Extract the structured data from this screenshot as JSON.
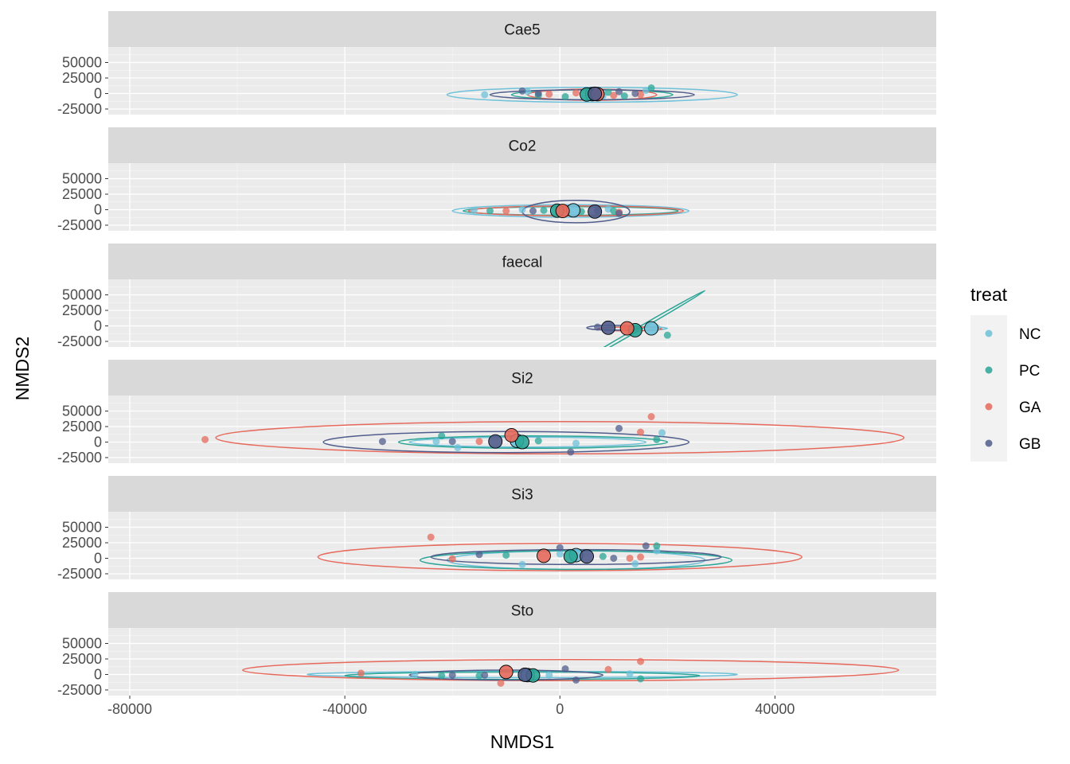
{
  "chart_data": {
    "type": "scatter",
    "xlabel": "NMDS1",
    "ylabel": "NMDS2",
    "xlim": [
      -84000,
      70000
    ],
    "ylim": [
      -34000,
      75000
    ],
    "x_ticks": [
      -80000,
      -40000,
      0,
      40000
    ],
    "y_ticks": [
      -25000,
      0,
      25000,
      50000
    ],
    "grid": true,
    "legend": {
      "title": "treat",
      "position": "right",
      "entries": [
        {
          "name": "NC",
          "color": "#6EC1D9"
        },
        {
          "name": "PC",
          "color": "#2AA596"
        },
        {
          "name": "GA",
          "color": "#E6695B"
        },
        {
          "name": "GB",
          "color": "#505D8C"
        }
      ]
    },
    "panels": [
      {
        "label": "Cae5",
        "centroids": {
          "NC": [
            6000,
            -1000
          ],
          "PC": [
            5000,
            -1500
          ],
          "GA": [
            7000,
            -1000
          ],
          "GB": [
            6500,
            -500
          ]
        },
        "ellipses": {
          "NC": {
            "center": [
              6000,
              -2000
            ],
            "rx": 27000,
            "ry": 12000,
            "angle": 0
          },
          "PC": {
            "center": [
              6000,
              -2000
            ],
            "rx": 15000,
            "ry": 8000,
            "angle": 0
          },
          "GA": {
            "center": [
              6000,
              -2000
            ],
            "rx": 12000,
            "ry": 9000,
            "angle": 0
          },
          "GB": {
            "center": [
              6000,
              -2000
            ],
            "rx": 19000,
            "ry": 8000,
            "angle": 0
          }
        },
        "points": [
          {
            "g": "NC",
            "x": -14000,
            "y": -2000
          },
          {
            "g": "NC",
            "x": -6000,
            "y": 3000
          },
          {
            "g": "NC",
            "x": 8000,
            "y": -4000
          },
          {
            "g": "NC",
            "x": 16000,
            "y": 5000
          },
          {
            "g": "PC",
            "x": -4000,
            "y": -3000
          },
          {
            "g": "PC",
            "x": 1000,
            "y": -5000
          },
          {
            "g": "PC",
            "x": 9000,
            "y": 2000
          },
          {
            "g": "PC",
            "x": 17000,
            "y": 9000
          },
          {
            "g": "PC",
            "x": 12000,
            "y": -4000
          },
          {
            "g": "GA",
            "x": -2000,
            "y": -1000
          },
          {
            "g": "GA",
            "x": 3000,
            "y": 1000
          },
          {
            "g": "GA",
            "x": 10000,
            "y": -3000
          },
          {
            "g": "GA",
            "x": 15000,
            "y": -2000
          },
          {
            "g": "GB",
            "x": -7000,
            "y": 4000
          },
          {
            "g": "GB",
            "x": -4000,
            "y": 0
          },
          {
            "g": "GB",
            "x": 11000,
            "y": 3000
          },
          {
            "g": "GB",
            "x": 14000,
            "y": 0
          }
        ]
      },
      {
        "label": "Co2",
        "centroids": {
          "NC": [
            2500,
            -1000
          ],
          "PC": [
            -500,
            -1500
          ],
          "GA": [
            500,
            -2000
          ],
          "GB": [
            6500,
            -3000
          ]
        },
        "ellipses": {
          "NC": {
            "center": [
              2000,
              -2000
            ],
            "rx": 22000,
            "ry": 10000,
            "angle": 0
          },
          "PC": {
            "center": [
              2000,
              -2000
            ],
            "rx": 20000,
            "ry": 7000,
            "angle": 0
          },
          "GA": {
            "center": [
              3000,
              -2000
            ],
            "rx": 20000,
            "ry": 8000,
            "angle": 0
          },
          "GB": {
            "center": [
              3000,
              -3000
            ],
            "rx": 10000,
            "ry": 18000,
            "angle": 0
          }
        },
        "points": [
          {
            "g": "NC",
            "x": -16000,
            "y": -1000
          },
          {
            "g": "NC",
            "x": -7000,
            "y": 0
          },
          {
            "g": "NC",
            "x": 9000,
            "y": 1000
          },
          {
            "g": "PC",
            "x": -13000,
            "y": -2000
          },
          {
            "g": "PC",
            "x": -3000,
            "y": -1000
          },
          {
            "g": "PC",
            "x": 4000,
            "y": -3000
          },
          {
            "g": "PC",
            "x": 10000,
            "y": -2000
          },
          {
            "g": "GA",
            "x": -10000,
            "y": -2000
          },
          {
            "g": "GA",
            "x": 1000,
            "y": -1000
          },
          {
            "g": "GA",
            "x": 11000,
            "y": -4000
          },
          {
            "g": "GB",
            "x": -5000,
            "y": -2000
          },
          {
            "g": "GB",
            "x": 7000,
            "y": -2000
          },
          {
            "g": "GB",
            "x": 11000,
            "y": -6000
          }
        ]
      },
      {
        "label": "faecal",
        "centroids": {
          "NC": [
            17000,
            -4000
          ],
          "PC": [
            14000,
            -7000
          ],
          "GA": [
            12500,
            -4000
          ],
          "GB": [
            9000,
            -3000
          ]
        },
        "ellipses": {
          "NC": {
            "center": [
              14000,
              -4000
            ],
            "rx": 6000,
            "ry": 3000,
            "angle": 0
          },
          "PC": {
            "center": [
              14000,
              -8000
            ],
            "rx": 15000,
            "ry": 2500,
            "angle": -30
          },
          "GA": {
            "center": [
              13000,
              -5000
            ],
            "rx": 6000,
            "ry": 3000,
            "angle": 0
          },
          "GB": {
            "center": [
              10000,
              -3000
            ],
            "rx": 5000,
            "ry": 4000,
            "angle": 0
          }
        },
        "points": [
          {
            "g": "NC",
            "x": 18000,
            "y": -3000
          },
          {
            "g": "PC",
            "x": 20000,
            "y": -15000
          },
          {
            "g": "GA",
            "x": 12000,
            "y": -3000
          },
          {
            "g": "GB",
            "x": 7000,
            "y": -2000
          }
        ]
      },
      {
        "label": "Si2",
        "centroids": {
          "NC": [
            -8000,
            2000
          ],
          "PC": [
            -7000,
            0
          ],
          "GA": [
            -9000,
            11000
          ],
          "GB": [
            -12000,
            1000
          ]
        },
        "ellipses": {
          "NC": {
            "center": [
              -6000,
              0
            ],
            "rx": 22000,
            "ry": 8000,
            "angle": 0
          },
          "PC": {
            "center": [
              -5000,
              0
            ],
            "rx": 25000,
            "ry": 10000,
            "angle": 0
          },
          "GA": {
            "center": [
              0,
              7000
            ],
            "rx": 64000,
            "ry": 26000,
            "angle": 0
          },
          "GB": {
            "center": [
              -10000,
              0
            ],
            "rx": 34000,
            "ry": 17000,
            "angle": 0
          }
        },
        "points": [
          {
            "g": "NC",
            "x": -23000,
            "y": 1000
          },
          {
            "g": "NC",
            "x": -19000,
            "y": -9000
          },
          {
            "g": "NC",
            "x": 3000,
            "y": -2000
          },
          {
            "g": "NC",
            "x": 19000,
            "y": 15000
          },
          {
            "g": "PC",
            "x": -22000,
            "y": 10000
          },
          {
            "g": "PC",
            "x": -4000,
            "y": 2000
          },
          {
            "g": "PC",
            "x": 18000,
            "y": 4000
          },
          {
            "g": "GA",
            "x": -66000,
            "y": 4000
          },
          {
            "g": "GA",
            "x": -15000,
            "y": 1000
          },
          {
            "g": "GA",
            "x": 15000,
            "y": 16000
          },
          {
            "g": "GA",
            "x": 17000,
            "y": 41000
          },
          {
            "g": "GB",
            "x": -33000,
            "y": 1000
          },
          {
            "g": "GB",
            "x": -20000,
            "y": 1000
          },
          {
            "g": "GB",
            "x": 11000,
            "y": 22000
          },
          {
            "g": "GB",
            "x": 2000,
            "y": -16000
          }
        ]
      },
      {
        "label": "Si3",
        "centroids": {
          "NC": [
            3000,
            5000
          ],
          "PC": [
            2000,
            3000
          ],
          "GA": [
            -3000,
            4000
          ],
          "GB": [
            5000,
            3000
          ]
        },
        "ellipses": {
          "NC": {
            "center": [
              3000,
              -3000
            ],
            "rx": 24000,
            "ry": 15000,
            "angle": 0
          },
          "PC": {
            "center": [
              3000,
              -3000
            ],
            "rx": 29000,
            "ry": 15000,
            "angle": 0
          },
          "GA": {
            "center": [
              0,
              2000
            ],
            "rx": 45000,
            "ry": 22000,
            "angle": 0
          },
          "GB": {
            "center": [
              3000,
              2000
            ],
            "rx": 27000,
            "ry": 12000,
            "angle": 0
          }
        },
        "points": [
          {
            "g": "NC",
            "x": -7000,
            "y": -10000
          },
          {
            "g": "NC",
            "x": 0,
            "y": 7000
          },
          {
            "g": "NC",
            "x": 14000,
            "y": -9000
          },
          {
            "g": "NC",
            "x": 18000,
            "y": 12000
          },
          {
            "g": "PC",
            "x": -10000,
            "y": 5000
          },
          {
            "g": "PC",
            "x": 8000,
            "y": 3000
          },
          {
            "g": "PC",
            "x": 18000,
            "y": 20000
          },
          {
            "g": "GA",
            "x": -24000,
            "y": 34000
          },
          {
            "g": "GA",
            "x": -20000,
            "y": -1000
          },
          {
            "g": "GA",
            "x": 13000,
            "y": 0
          },
          {
            "g": "GA",
            "x": 15000,
            "y": 2000
          },
          {
            "g": "GB",
            "x": -15000,
            "y": 6000
          },
          {
            "g": "GB",
            "x": 0,
            "y": 17000
          },
          {
            "g": "GB",
            "x": 10000,
            "y": 0
          },
          {
            "g": "GB",
            "x": 16000,
            "y": 20000
          }
        ]
      },
      {
        "label": "Sto",
        "centroids": {
          "NC": [
            -6000,
            -1000
          ],
          "PC": [
            -5000,
            -1500
          ],
          "GA": [
            -10000,
            4000
          ],
          "GB": [
            -6500,
            -500
          ]
        },
        "ellipses": {
          "NC": {
            "center": [
              -7000,
              0
            ],
            "rx": 40000,
            "ry": 5000,
            "angle": 0
          },
          "PC": {
            "center": [
              -7000,
              -2000
            ],
            "rx": 33000,
            "ry": 6000,
            "angle": 0
          },
          "GA": {
            "center": [
              2000,
              7000
            ],
            "rx": 61000,
            "ry": 17000,
            "angle": 0
          },
          "GB": {
            "center": [
              -10000,
              -1000
            ],
            "rx": 18000,
            "ry": 8000,
            "angle": 0
          }
        },
        "points": [
          {
            "g": "NC",
            "x": -27000,
            "y": 0
          },
          {
            "g": "NC",
            "x": -2000,
            "y": -1000
          },
          {
            "g": "NC",
            "x": 13000,
            "y": 1000
          },
          {
            "g": "PC",
            "x": -22000,
            "y": -2000
          },
          {
            "g": "PC",
            "x": -15000,
            "y": -2000
          },
          {
            "g": "PC",
            "x": 15000,
            "y": -7000
          },
          {
            "g": "GA",
            "x": -37000,
            "y": 2000
          },
          {
            "g": "GA",
            "x": -11000,
            "y": -14000
          },
          {
            "g": "GA",
            "x": 9000,
            "y": 8000
          },
          {
            "g": "GA",
            "x": 15000,
            "y": 21000
          },
          {
            "g": "GB",
            "x": -20000,
            "y": -1000
          },
          {
            "g": "GB",
            "x": -14000,
            "y": -1000
          },
          {
            "g": "GB",
            "x": 1000,
            "y": 9000
          },
          {
            "g": "GB",
            "x": 3000,
            "y": -9000
          }
        ]
      }
    ]
  }
}
